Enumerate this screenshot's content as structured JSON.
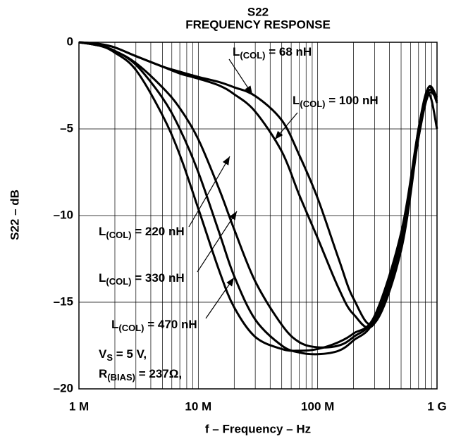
{
  "chart_data": {
    "type": "line",
    "title": [
      "S22",
      "FREQUENCY RESPONSE"
    ],
    "x_label": "f – Frequency – Hz",
    "y_label": "S22 – dB",
    "x": [
      1000000,
      1500000,
      2000000,
      3000000,
      5000000,
      7000000,
      10000000,
      15000000,
      20000000,
      30000000,
      50000000,
      70000000,
      100000000,
      150000000,
      200000000,
      300000000,
      500000000,
      700000000,
      850000000,
      1000000000
    ],
    "series": [
      {
        "name": [
          "L",
          "(COL)",
          " = 68 nH"
        ],
        "color": "#000000",
        "values": [
          0,
          -0.1,
          -0.3,
          -0.8,
          -1.4,
          -1.7,
          -2.0,
          -2.3,
          -2.6,
          -3.1,
          -4.5,
          -6.5,
          -9,
          -12.5,
          -14.8,
          -16.2,
          -12,
          -5.5,
          -3,
          -5
        ]
      },
      {
        "name": [
          "L",
          "(COL)",
          " = 100 nH"
        ],
        "color": "#000000",
        "values": [
          0,
          -0.1,
          -0.3,
          -0.8,
          -1.4,
          -1.8,
          -2.1,
          -2.5,
          -3.0,
          -4.0,
          -6.3,
          -8.8,
          -11.3,
          -14.2,
          -15.7,
          -16.2,
          -11.5,
          -5,
          -2.6,
          -3.5
        ]
      },
      {
        "name": [
          "L",
          "(COL)",
          " = 220 nH"
        ],
        "color": "#000000",
        "values": [
          0,
          -0.2,
          -0.5,
          -1.2,
          -2.6,
          -3.8,
          -5.6,
          -8.5,
          -10.8,
          -13.8,
          -16.3,
          -17.3,
          -17.6,
          -17.5,
          -17.0,
          -15.8,
          -11,
          -5,
          -2.6,
          -3.2
        ]
      },
      {
        "name": [
          "L",
          "(COL)",
          " = 330 nH"
        ],
        "color": "#000000",
        "values": [
          0,
          -0.2,
          -0.5,
          -1.3,
          -3.2,
          -5,
          -7.5,
          -11,
          -13.5,
          -16.0,
          -17.5,
          -17.9,
          -18.0,
          -17.8,
          -17.2,
          -16,
          -11.5,
          -5.5,
          -3.0,
          -3.3
        ]
      },
      {
        "name": [
          "L",
          "(COL)",
          " = 470 nH"
        ],
        "color": "#000000",
        "values": [
          0,
          -0.2,
          -0.6,
          -1.6,
          -4.2,
          -6.5,
          -9.6,
          -13.2,
          -15.3,
          -17.0,
          -17.7,
          -17.8,
          -17.7,
          -17.3,
          -16.8,
          -15.8,
          -11.2,
          -5.2,
          -2.8,
          -3.4
        ]
      }
    ],
    "conditions": [
      [
        "V",
        "S",
        " = 5 V,"
      ],
      [
        "R",
        "(BIAS)",
        " = 237Ω,"
      ]
    ],
    "x_log": true,
    "xlim": [
      1000000,
      1000000000
    ],
    "xticks": [
      {
        "value": 1000000,
        "label": "1 M"
      },
      {
        "value": 10000000,
        "label": "10 M"
      },
      {
        "value": 100000000,
        "label": "100 M"
      },
      {
        "value": 1000000000,
        "label": "1 G"
      }
    ],
    "xminorticks": [
      2000000,
      3000000,
      4000000,
      5000000,
      6000000,
      7000000,
      8000000,
      9000000,
      20000000,
      30000000,
      40000000,
      50000000,
      60000000,
      70000000,
      80000000,
      90000000,
      200000000,
      300000000,
      400000000,
      500000000,
      600000000,
      700000000,
      800000000,
      900000000
    ],
    "ylim": [
      -20,
      0
    ],
    "yticks": [
      {
        "value": 0,
        "label": "0"
      },
      {
        "value": -5,
        "label": "–5"
      },
      {
        "value": -10,
        "label": "–10"
      },
      {
        "value": -15,
        "label": "–15"
      },
      {
        "value": -20,
        "label": "–20"
      }
    ],
    "grid": true
  }
}
